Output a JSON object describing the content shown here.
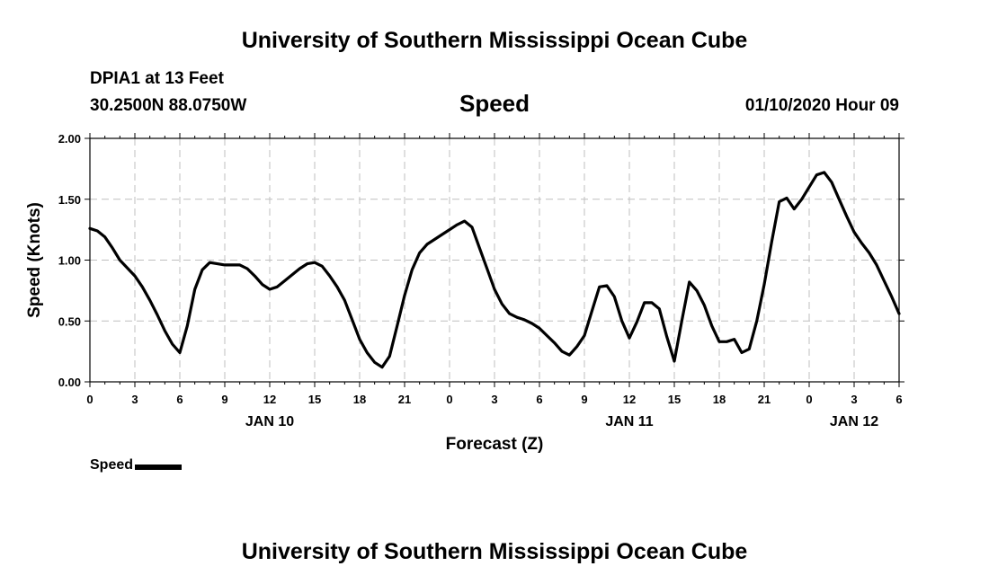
{
  "header": {
    "title": "University of Southern Mississippi Ocean Cube",
    "station": "DPIA1 at 13 Feet",
    "location": "30.2500N 88.0750W",
    "variable": "Speed",
    "timestamp": "01/10/2020 Hour 09"
  },
  "footer": {
    "title": "University of Southern Mississippi Ocean Cube"
  },
  "legend": {
    "label": "Speed",
    "color": "#000000"
  },
  "chart_data": {
    "type": "line",
    "xlabel": "Forecast (Z)",
    "ylabel": "Speed (Knots)",
    "ylim": [
      0,
      2
    ],
    "xlim_hours": [
      0,
      54
    ],
    "grid": true,
    "y_ticks": [
      "0.00",
      "0.50",
      "1.00",
      "1.50",
      "2.00"
    ],
    "x_tick_labels": [
      "0",
      "3",
      "6",
      "9",
      "12",
      "15",
      "18",
      "21",
      "0",
      "3",
      "6",
      "9",
      "12",
      "15",
      "18",
      "21",
      "0",
      "3",
      "6"
    ],
    "date_labels": [
      {
        "label": "JAN 10",
        "hour": 12
      },
      {
        "label": "JAN 11",
        "hour": 36
      },
      {
        "label": "JAN 12",
        "hour": 51
      }
    ],
    "series": [
      {
        "name": "Speed",
        "color": "#000000",
        "x": [
          0,
          0.5,
          1,
          1.5,
          2,
          3,
          3.5,
          4,
          4.5,
          5,
          5.5,
          6,
          6.5,
          7,
          7.5,
          8,
          8.5,
          9,
          9.5,
          10,
          10.5,
          11,
          11.5,
          12,
          12.5,
          13,
          13.5,
          14,
          14.5,
          15,
          15.5,
          16,
          16.5,
          17,
          17.5,
          18,
          18.5,
          19,
          19.5,
          20,
          20.5,
          21,
          21.5,
          22,
          22.5,
          23,
          23.5,
          24,
          24.5,
          25,
          25.5,
          26,
          26.5,
          27,
          27.5,
          28,
          28.5,
          29,
          29.5,
          30,
          30.5,
          31,
          31.5,
          32,
          32.5,
          33,
          33.5,
          34,
          34.5,
          35,
          35.5,
          36,
          36.5,
          37,
          37.5,
          38,
          38.5,
          39,
          39.5,
          40,
          40.5,
          41,
          41.5,
          42,
          42.5,
          43,
          43.5,
          44,
          44.5,
          45,
          45.5,
          46,
          46.5,
          47,
          47.5,
          48,
          48.5,
          49,
          49.5,
          50,
          50.5,
          51,
          51.5,
          52,
          52.5,
          53,
          53.5,
          54
        ],
        "y": [
          1.26,
          1.24,
          1.19,
          1.1,
          1.0,
          0.87,
          0.78,
          0.67,
          0.55,
          0.42,
          0.31,
          0.24,
          0.46,
          0.76,
          0.92,
          0.98,
          0.97,
          0.96,
          0.96,
          0.96,
          0.93,
          0.87,
          0.8,
          0.76,
          0.78,
          0.83,
          0.88,
          0.93,
          0.97,
          0.98,
          0.95,
          0.87,
          0.78,
          0.67,
          0.51,
          0.35,
          0.24,
          0.16,
          0.12,
          0.21,
          0.46,
          0.71,
          0.92,
          1.06,
          1.13,
          1.17,
          1.21,
          1.25,
          1.29,
          1.32,
          1.27,
          1.1,
          0.93,
          0.76,
          0.64,
          0.56,
          0.53,
          0.51,
          0.48,
          0.44,
          0.38,
          0.32,
          0.25,
          0.22,
          0.29,
          0.38,
          0.58,
          0.78,
          0.79,
          0.7,
          0.5,
          0.36,
          0.49,
          0.65,
          0.65,
          0.6,
          0.37,
          0.17,
          0.5,
          0.82,
          0.75,
          0.63,
          0.46,
          0.33,
          0.33,
          0.35,
          0.24,
          0.27,
          0.5,
          0.8,
          1.15,
          1.48,
          1.51,
          1.42,
          1.5,
          1.6,
          1.7,
          1.72,
          1.64,
          1.5,
          1.36,
          1.23,
          1.14,
          1.06,
          0.96,
          0.83,
          0.7,
          0.56
        ]
      }
    ]
  }
}
